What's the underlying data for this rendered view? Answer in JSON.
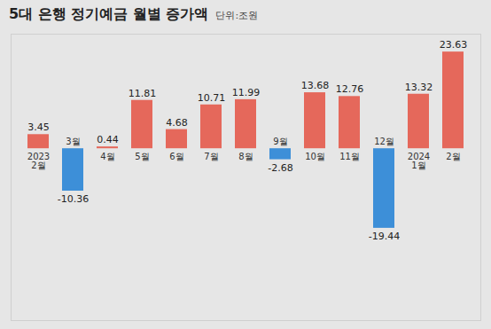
{
  "chart_data": {
    "type": "bar",
    "title": "5대 은행 정기예금 월별 증가액",
    "subtitle": "단위:조원",
    "categories": [
      "2023\n2월",
      "3월",
      "4월",
      "5월",
      "6월",
      "7월",
      "8월",
      "9월",
      "10월",
      "11월",
      "12월",
      "2024\n1월",
      "2월"
    ],
    "values": [
      3.45,
      -10.36,
      0.44,
      11.81,
      4.68,
      10.71,
      11.99,
      -2.68,
      13.68,
      12.76,
      -19.44,
      13.32,
      23.63
    ],
    "colors": [
      "#e5685b",
      "#3d8fd8",
      "#e5685b",
      "#e5685b",
      "#e5685b",
      "#e5685b",
      "#e5685b",
      "#3d8fd8",
      "#e5685b",
      "#e5685b",
      "#3d8fd8",
      "#e5685b",
      "#e5685b"
    ],
    "ylim": [
      -42,
      28
    ],
    "data_labels": true,
    "tick_labels": "x",
    "grid": false
  }
}
